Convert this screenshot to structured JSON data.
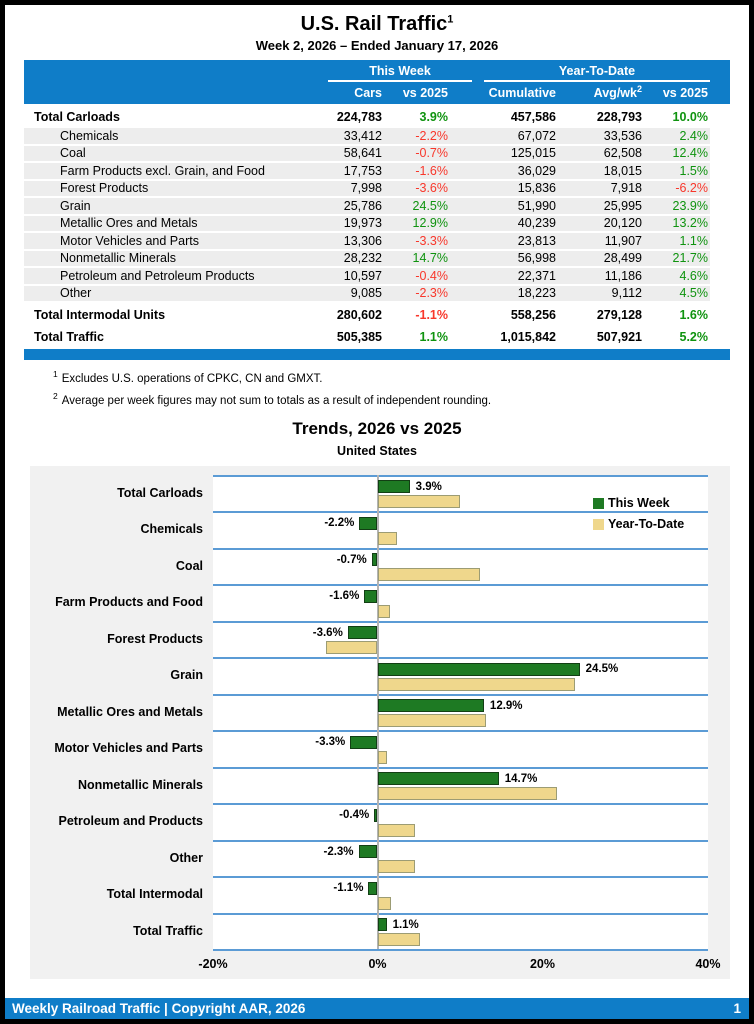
{
  "report": {
    "title": "U.S. Rail Traffic",
    "title_sup": "1",
    "subtitle": "Week 2, 2026 – Ended January 17, 2026"
  },
  "colors": {
    "header_blue": "#0F7DC8",
    "grid_blue": "#5B9BD5",
    "positive_green": "#0F930F",
    "negative_red": "#F8372B",
    "bar_green": "#1E7A23",
    "bar_tan": "#EFD78C"
  },
  "table": {
    "group_headers": {
      "this_week": "This Week",
      "year_to_date": "Year-To-Date"
    },
    "col_headers": {
      "cars": "Cars",
      "this_week_vs": "vs 2025",
      "cumulative": "Cumulative",
      "avg_wk": "Avg/wk",
      "avg_wk_sup": "2",
      "ytd_vs": "vs 2025"
    },
    "rows": [
      {
        "label": "Total Carloads",
        "type": "total",
        "cars": "224,783",
        "tw": "3.9%",
        "cum": "457,586",
        "avg": "228,793",
        "ytd": "10.0%"
      },
      {
        "label": "Chemicals",
        "type": "sub",
        "cars": "33,412",
        "tw": "-2.2%",
        "cum": "67,072",
        "avg": "33,536",
        "ytd": "2.4%"
      },
      {
        "label": "Coal",
        "type": "sub",
        "cars": "58,641",
        "tw": "-0.7%",
        "cum": "125,015",
        "avg": "62,508",
        "ytd": "12.4%"
      },
      {
        "label": "Farm Products excl. Grain, and Food",
        "type": "sub",
        "cars": "17,753",
        "tw": "-1.6%",
        "cum": "36,029",
        "avg": "18,015",
        "ytd": "1.5%"
      },
      {
        "label": "Forest Products",
        "type": "sub",
        "cars": "7,998",
        "tw": "-3.6%",
        "cum": "15,836",
        "avg": "7,918",
        "ytd": "-6.2%"
      },
      {
        "label": "Grain",
        "type": "sub",
        "cars": "25,786",
        "tw": "24.5%",
        "cum": "51,990",
        "avg": "25,995",
        "ytd": "23.9%"
      },
      {
        "label": "Metallic Ores and Metals",
        "type": "sub",
        "cars": "19,973",
        "tw": "12.9%",
        "cum": "40,239",
        "avg": "20,120",
        "ytd": "13.2%"
      },
      {
        "label": "Motor Vehicles and Parts",
        "type": "sub",
        "cars": "13,306",
        "tw": "-3.3%",
        "cum": "23,813",
        "avg": "11,907",
        "ytd": "1.1%"
      },
      {
        "label": "Nonmetallic Minerals",
        "type": "sub",
        "cars": "28,232",
        "tw": "14.7%",
        "cum": "56,998",
        "avg": "28,499",
        "ytd": "21.7%"
      },
      {
        "label": "Petroleum and Petroleum Products",
        "type": "sub",
        "cars": "10,597",
        "tw": "-0.4%",
        "cum": "22,371",
        "avg": "11,186",
        "ytd": "4.6%"
      },
      {
        "label": "Other",
        "type": "sub",
        "cars": "9,085",
        "tw": "-2.3%",
        "cum": "18,223",
        "avg": "9,112",
        "ytd": "4.5%"
      },
      {
        "label": "Total Intermodal Units",
        "type": "total",
        "cars": "280,602",
        "tw": "-1.1%",
        "cum": "558,256",
        "avg": "279,128",
        "ytd": "1.6%"
      },
      {
        "label": "Total Traffic",
        "type": "total",
        "cars": "505,385",
        "tw": "1.1%",
        "cum": "1,015,842",
        "avg": "507,921",
        "ytd": "5.2%"
      }
    ]
  },
  "footnotes": [
    {
      "sup": "1",
      "text": "Excludes U.S. operations of CPKC, CN and GMXT."
    },
    {
      "sup": "2",
      "text": "Average per week figures may not sum to totals as a result of independent rounding."
    }
  ],
  "chart_data": {
    "type": "bar",
    "orientation": "horizontal",
    "title": "Trends, 2026 vs 2025",
    "subtitle": "United States",
    "categories": [
      "Total Carloads",
      "Chemicals",
      "Coal",
      "Farm Products and Food",
      "Forest Products",
      "Grain",
      "Metallic Ores and Metals",
      "Motor Vehicles and Parts",
      "Nonmetallic Minerals",
      "Petroleum and Products",
      "Other",
      "Total Intermodal",
      "Total Traffic"
    ],
    "series": [
      {
        "name": "This Week",
        "color": "#1E7A23",
        "values": [
          3.9,
          -2.2,
          -0.7,
          -1.6,
          -3.6,
          24.5,
          12.9,
          -3.3,
          14.7,
          -0.4,
          -2.3,
          -1.1,
          1.1
        ]
      },
      {
        "name": "Year-To-Date",
        "color": "#EFD78C",
        "values": [
          10.0,
          2.4,
          12.4,
          1.5,
          -6.2,
          23.9,
          13.2,
          1.1,
          21.7,
          4.6,
          4.5,
          1.6,
          5.2
        ]
      }
    ],
    "xlim": [
      -20,
      40
    ],
    "x_ticks": [
      "-20%",
      "0%",
      "20%",
      "40%"
    ],
    "data_labels": "This Week series only",
    "legend_position": "top-right",
    "grid": "horizontal category separators"
  },
  "footer": {
    "left": "Weekly Railroad Traffic | Copyright AAR, 2026",
    "page_number": "1"
  }
}
